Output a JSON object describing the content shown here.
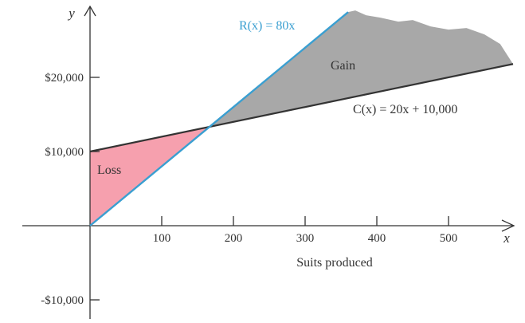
{
  "chart_data": {
    "type": "line",
    "title": "",
    "xlabel": "Suits produced",
    "ylabel": "",
    "x_axis_letter": "x",
    "y_axis_letter": "y",
    "xlim": [
      0,
      590
    ],
    "ylim": [
      -10000,
      29000
    ],
    "x_ticks": [
      100,
      200,
      300,
      400,
      500
    ],
    "x_tick_labels": [
      "100",
      "200",
      "300",
      "400",
      "500"
    ],
    "y_ticks": [
      -10000,
      10000,
      20000
    ],
    "y_tick_labels": [
      "-$10,000",
      "$10,000",
      "$20,000"
    ],
    "grid": false,
    "series": [
      {
        "name": "R(x) = 80x",
        "color": "#3a9fd1",
        "x": [
          0,
          360
        ],
        "y": [
          0,
          28800
        ]
      },
      {
        "name": "C(x) = 20x + 10,000",
        "color": "#333333",
        "x": [
          0,
          590
        ],
        "y": [
          10000,
          21800
        ]
      }
    ],
    "regions": [
      {
        "label": "Loss",
        "color": "#f6a0ae",
        "x_range": [
          0,
          166.67
        ]
      },
      {
        "label": "Gain",
        "color": "#a8a8a8",
        "x_range": [
          166.67,
          590
        ]
      }
    ]
  }
}
